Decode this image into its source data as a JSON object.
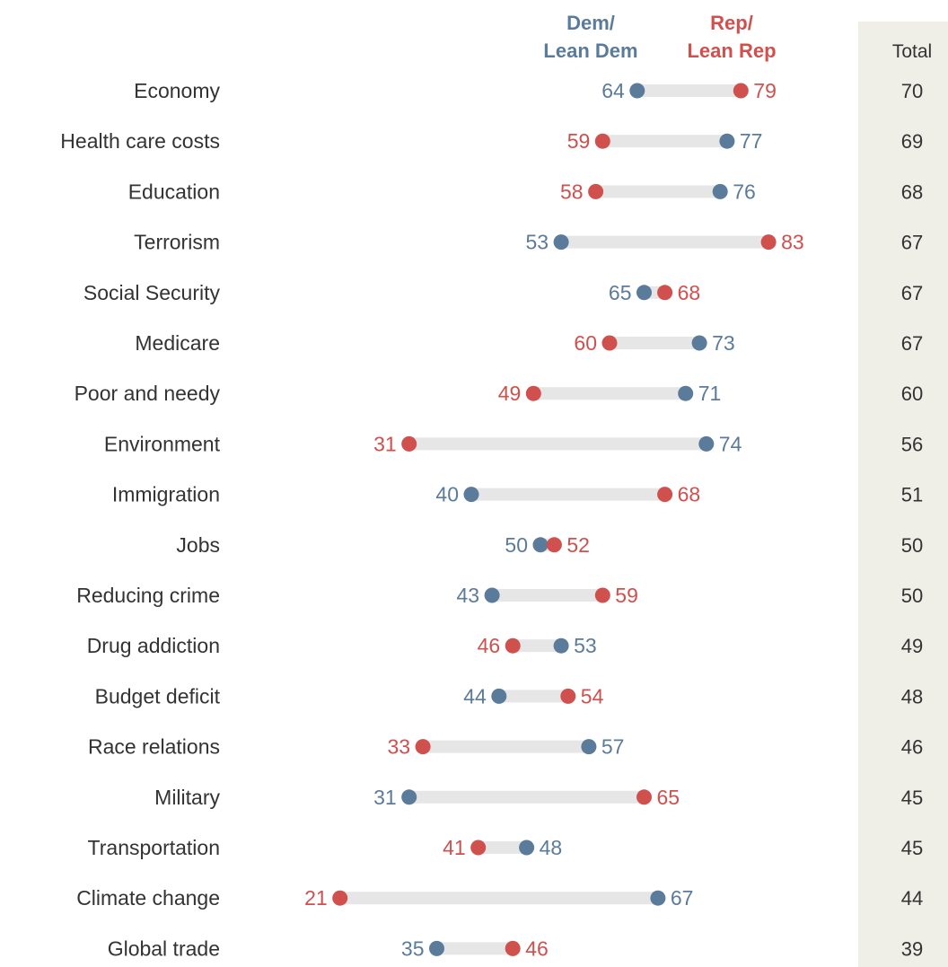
{
  "colors": {
    "dem": "#5b7b9a",
    "rep": "#d0504e",
    "bar": "#e6e6e6",
    "total_panel": "#efefe8",
    "text": "#333333"
  },
  "chart_data": {
    "type": "dot",
    "title": "",
    "legend_dem": [
      "Dem/",
      "Lean Dem"
    ],
    "legend_rep": [
      "Rep/",
      "Lean Rep"
    ],
    "total_header": "Total",
    "categories": [
      "Economy",
      "Health care costs",
      "Education",
      "Terrorism",
      "Social Security",
      "Medicare",
      "Poor and needy",
      "Environment",
      "Immigration",
      "Jobs",
      "Reducing crime",
      "Drug addiction",
      "Budget deficit",
      "Race relations",
      "Military",
      "Transportation",
      "Climate change",
      "Global trade"
    ],
    "series": [
      {
        "name": "Dem/Lean Dem",
        "values": [
          64,
          77,
          76,
          53,
          65,
          73,
          71,
          74,
          40,
          50,
          43,
          53,
          44,
          57,
          31,
          48,
          67,
          35
        ]
      },
      {
        "name": "Rep/Lean Rep",
        "values": [
          79,
          59,
          58,
          83,
          68,
          60,
          49,
          31,
          68,
          52,
          59,
          46,
          54,
          33,
          65,
          41,
          21,
          46
        ]
      }
    ],
    "total": [
      70,
      69,
      68,
      67,
      67,
      67,
      60,
      56,
      51,
      50,
      50,
      49,
      48,
      46,
      45,
      45,
      44,
      39
    ]
  }
}
